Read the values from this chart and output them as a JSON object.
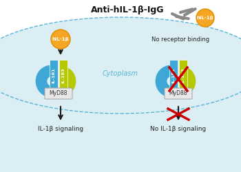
{
  "bg_color": "#ffffff",
  "cytoplasm_color": "#daeef3",
  "cytoplasm_line_color": "#5ab4d6",
  "il1b_orange": "#f5a623",
  "il1b_orange_dark": "#e08c00",
  "receptor_blue": "#3ea7d5",
  "receptor_green": "#b5c800",
  "il1r1_color": "#3ea7d5",
  "il1r3_color": "#b5c800",
  "myd88_color": "#e8e8e8",
  "myd88_border": "#aaaaaa",
  "arrow_color": "#1a1a1a",
  "cross_color": "#cc0000",
  "antibody_color": "#888888",
  "title_text": "Anti-hIL-1β-IgG",
  "label_il1b": "hIL-1β",
  "label_il1r1": "IL-1R1",
  "label_il1r3": "IL-1R3",
  "label_myd88": "MyD88",
  "label_cytoplasm": "Cytoplasm",
  "label_signaling": "IL-1β signaling",
  "label_no_binding": "No receptor binding",
  "label_no_signaling": "No IL-1β signaling"
}
